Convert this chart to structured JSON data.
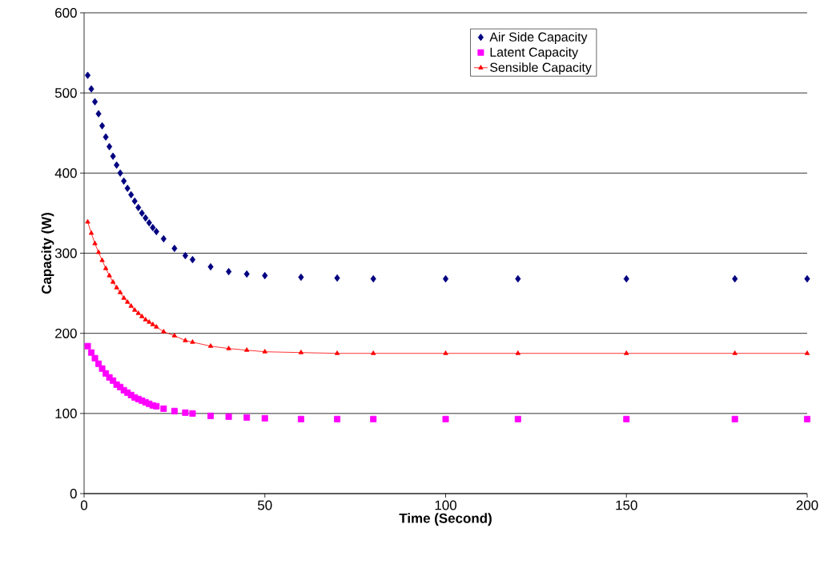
{
  "chart_data": {
    "type": "line",
    "xlabel": "Time (Second)",
    "ylabel": "Capacity (W)",
    "x": [
      1,
      2,
      3,
      4,
      5,
      6,
      7,
      8,
      9,
      10,
      11,
      12,
      13,
      14,
      15,
      16,
      17,
      18,
      19,
      20,
      22,
      25,
      28,
      30,
      35,
      40,
      45,
      50,
      60,
      70,
      80,
      100,
      120,
      150,
      180,
      200
    ],
    "series": [
      {
        "name": "Air Side Capacity",
        "type": "scatter",
        "marker": "diamond",
        "color": "#000080",
        "values": [
          522,
          505,
          489,
          474,
          459,
          445,
          433,
          421,
          410,
          400,
          390,
          381,
          373,
          365,
          357,
          350,
          344,
          338,
          332,
          327,
          318,
          306,
          297,
          292,
          283,
          277,
          274,
          272,
          270,
          269,
          268,
          268,
          268,
          268,
          268,
          268
        ]
      },
      {
        "name": "Latent Capacity",
        "type": "scatter",
        "marker": "square",
        "color": "#ff00ff",
        "values": [
          184,
          176,
          169,
          162,
          156,
          150,
          145,
          141,
          136,
          133,
          129,
          126,
          123,
          120,
          118,
          116,
          114,
          112,
          110,
          109,
          106,
          103,
          101,
          100,
          97,
          96,
          95,
          94,
          93,
          93,
          93,
          93,
          93,
          93,
          93,
          93
        ]
      },
      {
        "name": "Sensible Capacity",
        "type": "line",
        "marker": "triangle",
        "color": "#ff0000",
        "values": [
          339,
          325,
          312,
          301,
          291,
          281,
          272,
          264,
          257,
          251,
          244,
          239,
          234,
          229,
          225,
          221,
          217,
          214,
          211,
          208,
          202,
          197,
          191,
          189,
          184,
          181,
          179,
          177,
          176,
          175,
          175,
          175,
          175,
          175,
          175,
          175
        ]
      }
    ],
    "xlim": [
      0,
      200
    ],
    "xticks": [
      0,
      50,
      100,
      150,
      200
    ],
    "ylim": [
      0,
      600
    ],
    "yticks": [
      0,
      100,
      200,
      300,
      400,
      500,
      600
    ],
    "grid": "y",
    "legend": "top right"
  }
}
